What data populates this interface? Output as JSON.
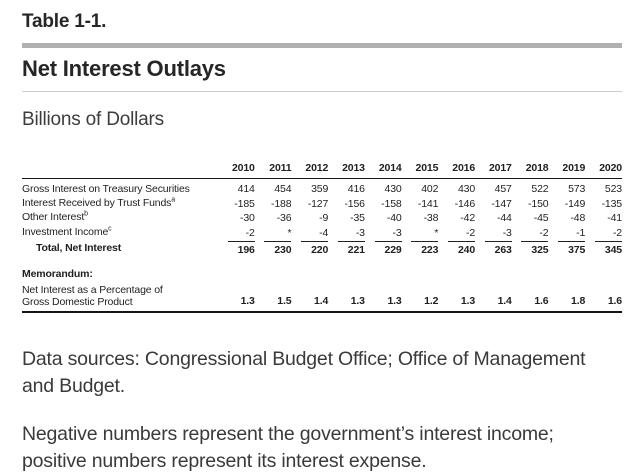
{
  "header": {
    "table_label": "Table 1-1.",
    "title": "Net Interest Outlays",
    "subtitle": "Billions of Dollars"
  },
  "table": {
    "years": [
      "2010",
      "2011",
      "2012",
      "2013",
      "2014",
      "2015",
      "2016",
      "2017",
      "2018",
      "2019",
      "2020"
    ],
    "rows": [
      {
        "label": "Gross Interest on Treasury Securities",
        "sup": "",
        "values": [
          "414",
          "454",
          "359",
          "416",
          "430",
          "402",
          "430",
          "457",
          "522",
          "573",
          "523"
        ]
      },
      {
        "label": "Interest Received by Trust Funds",
        "sup": "a",
        "values": [
          "-185",
          "-188",
          "-127",
          "-156",
          "-158",
          "-141",
          "-146",
          "-147",
          "-150",
          "-149",
          "-135"
        ]
      },
      {
        "label": "Other Interest",
        "sup": "b",
        "values": [
          "-30",
          "-36",
          "-9",
          "-35",
          "-40",
          "-38",
          "-42",
          "-44",
          "-45",
          "-48",
          "-41"
        ]
      },
      {
        "label": "Investment Income",
        "sup": "c",
        "values": [
          "-2",
          "*",
          "-4",
          "-3",
          "-3",
          "*",
          "-2",
          "-3",
          "-2",
          "-1",
          "-2"
        ]
      }
    ],
    "total_row": {
      "label": "Total, Net Interest",
      "values": [
        "196",
        "230",
        "220",
        "221",
        "229",
        "223",
        "240",
        "263",
        "325",
        "375",
        "345"
      ]
    },
    "memorandum_label": "Memorandum:",
    "memo_row": {
      "label_lines": [
        "Net Interest as a Percentage of",
        "Gross Domestic Product"
      ],
      "values": [
        "1.3",
        "1.5",
        "1.4",
        "1.3",
        "1.3",
        "1.2",
        "1.3",
        "1.4",
        "1.6",
        "1.8",
        "1.6"
      ]
    }
  },
  "notes": [
    "Data sources: Congressional Budget Office; Office of Management and Budget.",
    "Negative numbers represent the government’s interest income; positive numbers represent its interest expense."
  ],
  "colors": {
    "rule_dark": "#161616",
    "bar_gray": "#b1b1b1",
    "line_light": "#cccccc",
    "text": "#2b2b2b"
  }
}
